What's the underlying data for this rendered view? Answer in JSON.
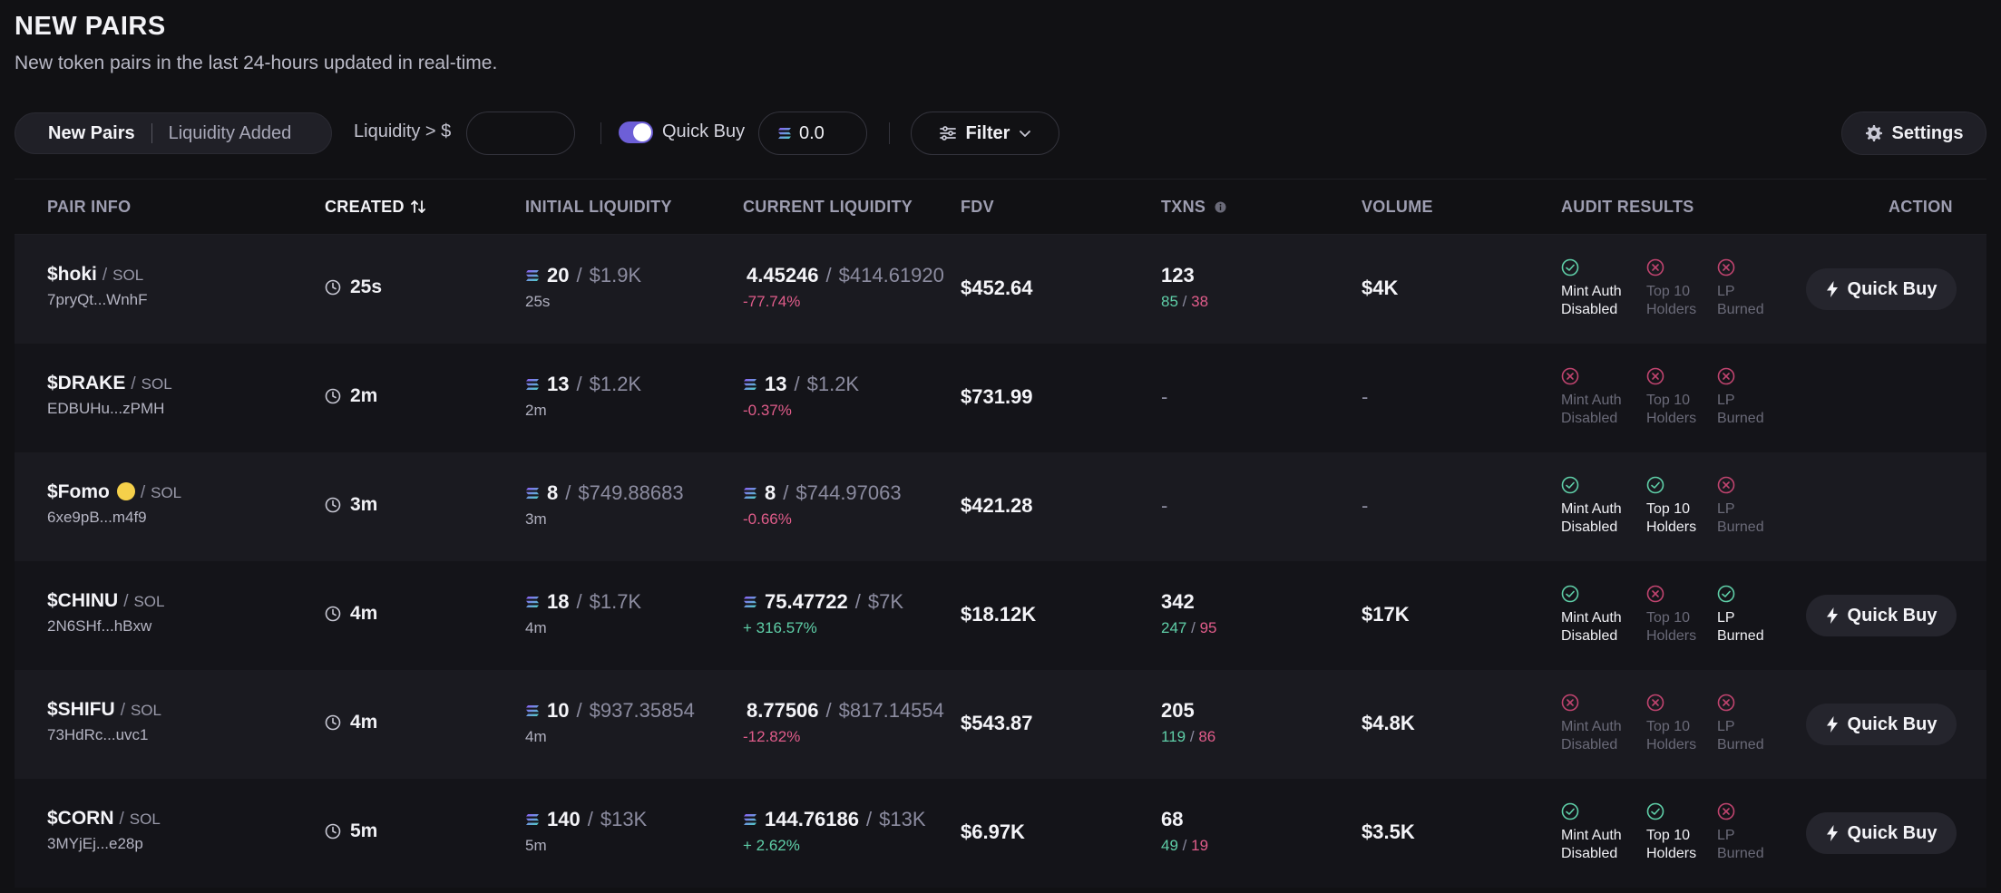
{
  "header": {
    "title": "NEW PAIRS",
    "subtitle": "New token pairs in the last 24-hours updated in real-time."
  },
  "toolbar": {
    "tabs": [
      {
        "label": "New Pairs",
        "active": true
      },
      {
        "label": "Liquidity Added",
        "active": false
      }
    ],
    "liquidity_label": "Liquidity > $",
    "liquidity_value": "",
    "quick_buy_label": "Quick Buy",
    "quick_buy_enabled": true,
    "quick_buy_amount": "0.0",
    "filter_label": "Filter",
    "settings_label": "Settings"
  },
  "colors": {
    "accent": "#6d5fd7",
    "positive": "#5fcfa8",
    "negative": "#e05c8a",
    "background": "#111114"
  },
  "table": {
    "columns": {
      "pair_info": "PAIR INFO",
      "created": "CREATED",
      "initial_liquidity": "INITIAL LIQUIDITY",
      "current_liquidity": "CURRENT LIQUIDITY",
      "fdv": "FDV",
      "txns": "TXNS",
      "volume": "VOLUME",
      "audit_results": "AUDIT RESULTS",
      "action": "ACTION"
    },
    "audit_labels": {
      "mint_1": "Mint Auth",
      "mint_2": "Disabled",
      "top_1": "Top 10",
      "top_2": "Holders",
      "lp_1": "LP",
      "lp_2": "Burned"
    },
    "quick_buy_label": "Quick Buy",
    "slash": "/",
    "rows": [
      {
        "name": "$hoki",
        "quote": "SOL",
        "address": "7pryQt...WnhF",
        "created": "25s",
        "init_sol": "20",
        "init_usd": "$1.9K",
        "init_age": "25s",
        "cur_sol": "4.45246",
        "cur_usd": "$414.61920",
        "cur_pct": "-77.74%",
        "cur_pct_positive": false,
        "cur_sol_icon": false,
        "fdv": "$452.64",
        "txns": "123",
        "buys": "85",
        "sells": "38",
        "volume": "$4K",
        "mint": true,
        "top10": false,
        "lp": false,
        "show_buy": true
      },
      {
        "name": "$DRAKE",
        "quote": "SOL",
        "address": "EDBUHu...zPMH",
        "created": "2m",
        "init_sol": "13",
        "init_usd": "$1.2K",
        "init_age": "2m",
        "cur_sol": "13",
        "cur_usd": "$1.2K",
        "cur_pct": "-0.37%",
        "cur_pct_positive": false,
        "cur_sol_icon": true,
        "fdv": "$731.99",
        "txns": "-",
        "buys": "",
        "sells": "",
        "volume": "-",
        "mint": false,
        "top10": false,
        "lp": false,
        "show_buy": false
      },
      {
        "name": "$Fomo",
        "quote": "SOL",
        "address": "6xe9pB...m4f9",
        "created": "3m",
        "emoji": true,
        "init_sol": "8",
        "init_usd": "$749.88683",
        "init_age": "3m",
        "cur_sol": "8",
        "cur_usd": "$744.97063",
        "cur_pct": "-0.66%",
        "cur_pct_positive": false,
        "cur_sol_icon": true,
        "fdv": "$421.28",
        "txns": "-",
        "buys": "",
        "sells": "",
        "volume": "-",
        "mint": true,
        "top10": true,
        "lp": false,
        "show_buy": false
      },
      {
        "name": "$CHINU",
        "quote": "SOL",
        "address": "2N6SHf...hBxw",
        "created": "4m",
        "init_sol": "18",
        "init_usd": "$1.7K",
        "init_age": "4m",
        "cur_sol": "75.47722",
        "cur_usd": "$7K",
        "cur_pct": "+ 316.57%",
        "cur_pct_positive": true,
        "cur_sol_icon": true,
        "fdv": "$18.12K",
        "txns": "342",
        "buys": "247",
        "sells": "95",
        "volume": "$17K",
        "mint": true,
        "top10": false,
        "lp": true,
        "show_buy": true
      },
      {
        "name": "$SHIFU",
        "quote": "SOL",
        "address": "73HdRc...uvc1",
        "created": "4m",
        "init_sol": "10",
        "init_usd": "$937.35854",
        "init_age": "4m",
        "cur_sol": "8.77506",
        "cur_usd": "$817.14554",
        "cur_pct": "-12.82%",
        "cur_pct_positive": false,
        "cur_sol_icon": false,
        "fdv": "$543.87",
        "txns": "205",
        "buys": "119",
        "sells": "86",
        "volume": "$4.8K",
        "mint": false,
        "top10": false,
        "lp": false,
        "show_buy": true
      },
      {
        "name": "$CORN",
        "quote": "SOL",
        "address": "3MYjEj...e28p",
        "created": "5m",
        "init_sol": "140",
        "init_usd": "$13K",
        "init_age": "5m",
        "cur_sol": "144.76186",
        "cur_usd": "$13K",
        "cur_pct": "+ 2.62%",
        "cur_pct_positive": true,
        "cur_sol_icon": true,
        "fdv": "$6.97K",
        "txns": "68",
        "buys": "49",
        "sells": "19",
        "volume": "$3.5K",
        "mint": true,
        "top10": true,
        "lp": false,
        "show_buy": true
      }
    ]
  }
}
